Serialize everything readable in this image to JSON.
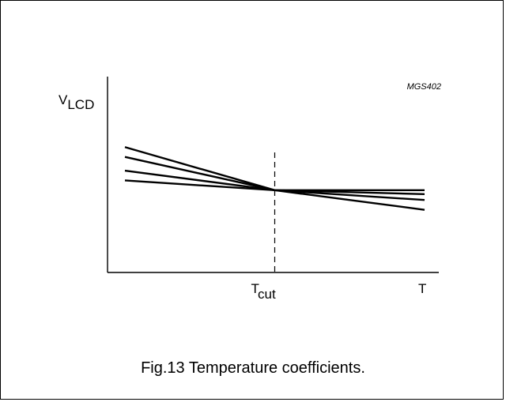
{
  "chart_data": {
    "type": "line",
    "figure_id": "MGS402",
    "ylabel": {
      "main": "V",
      "sub": "LCD"
    },
    "xlabel": "T",
    "marker": {
      "main": "T",
      "sub": "cut",
      "x": 0.5
    },
    "x": [
      0,
      0.5,
      1
    ],
    "ylim": [
      0,
      1
    ],
    "xlim": [
      0,
      1
    ],
    "series": [
      {
        "values": [
          0.52,
          0.42,
          0.42
        ]
      },
      {
        "values": [
          0.47,
          0.42,
          0.4
        ]
      },
      {
        "values": [
          0.59,
          0.42,
          0.37
        ]
      },
      {
        "values": [
          0.64,
          0.42,
          0.32
        ]
      }
    ]
  },
  "caption": "Fig.13  Temperature coefficients."
}
